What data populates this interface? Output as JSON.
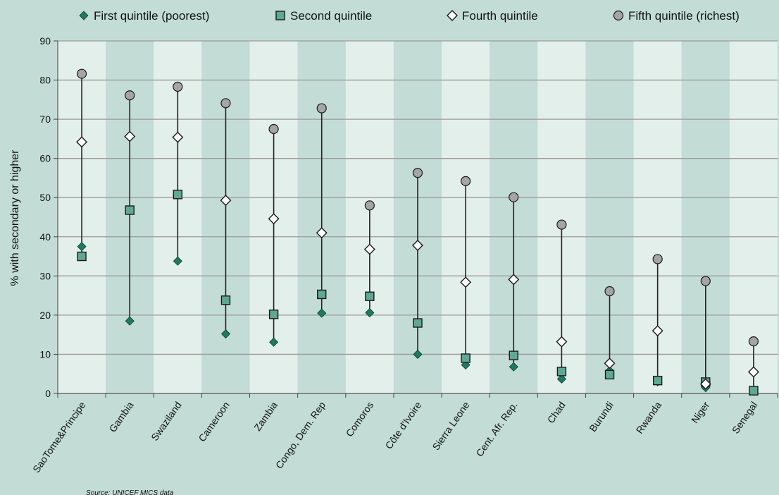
{
  "colors": {
    "page_bg": "#c3ddd6",
    "band_light": "#e3efeb",
    "band_dark": "#c3ddd6",
    "gridline": "#9a9a9a",
    "range_line": "#222222",
    "first_fill": "#1f7a5f",
    "second_fill": "#5fa994",
    "fourth_fill": "#ffffff",
    "fifth_fill": "#a5a5a5"
  },
  "chart_data": {
    "type": "scatter",
    "title": "",
    "xlabel": "",
    "ylabel": "% with secondary or higher",
    "ylim": [
      0,
      90
    ],
    "yticks": [
      "0",
      "10",
      "20",
      "30",
      "40",
      "50",
      "60",
      "70",
      "80",
      "90"
    ],
    "grid": true,
    "legend_position": "top",
    "categories": [
      "SaoTome&Principe",
      "Gambia",
      "Swaziland",
      "Cameroon",
      "Zambia",
      "Congo, Dem. Rep",
      "Comoros",
      "Côte d'Ivoire",
      "Sierra Leone",
      "Cent. Afr. Rep.",
      "Chad",
      "Burundi",
      "Rwanda",
      "Niger",
      "Senegal"
    ],
    "series": [
      {
        "name": "First quintile (poorest)",
        "marker": "diamond-filled",
        "values": [
          37.5,
          18.5,
          33.8,
          15.2,
          13.1,
          20.5,
          20.6,
          10.0,
          7.3,
          6.8,
          3.7,
          5.8,
          3.0,
          1.5,
          0.6
        ]
      },
      {
        "name": "Second quintile",
        "marker": "square",
        "values": [
          35.0,
          46.8,
          50.8,
          23.8,
          20.2,
          25.3,
          24.8,
          18.0,
          9.0,
          9.7,
          5.6,
          4.8,
          3.3,
          2.9,
          0.7
        ]
      },
      {
        "name": "Fourth quintile",
        "marker": "diamond-open",
        "values": [
          64.2,
          65.6,
          65.4,
          49.3,
          44.6,
          41.0,
          36.8,
          37.8,
          28.4,
          29.1,
          13.2,
          7.7,
          16.0,
          2.4,
          5.5
        ]
      },
      {
        "name": "Fifth quintile (richest)",
        "marker": "circle",
        "values": [
          81.6,
          76.1,
          78.3,
          74.1,
          67.5,
          72.8,
          48.0,
          56.3,
          54.2,
          50.1,
          43.1,
          26.1,
          34.3,
          28.7,
          13.3
        ]
      }
    ],
    "source_note": "Source: UNICEF MICS data"
  }
}
